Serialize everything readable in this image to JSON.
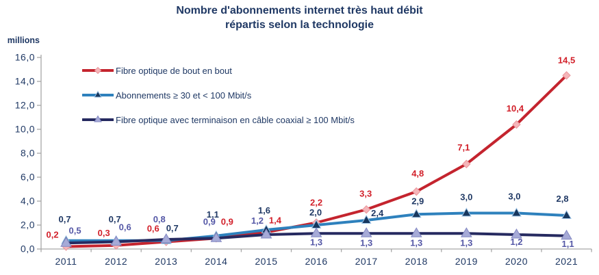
{
  "header": {
    "title_line1": "Nombre d'abonnements internet très haut débit",
    "title_line2": "répartis selon la technologie",
    "y_unit_label": "millions"
  },
  "colors": {
    "title_text": "#1F3864",
    "axis_text": "#1F3864",
    "axis_line": "#A6A6A6",
    "background": "#FFFFFF"
  },
  "chart_data": {
    "type": "line",
    "title": "Nombre d'abonnements internet très haut débit répartis selon la technologie",
    "y_unit": "millions",
    "xlabel": "",
    "ylabel": "millions",
    "categories": [
      "2011",
      "2012",
      "2013",
      "2014",
      "2015",
      "2016",
      "2017",
      "2018",
      "2019",
      "2020",
      "2021"
    ],
    "ylim": [
      0,
      16
    ],
    "ytick_step": 2,
    "ytick_labels": [
      "0,0",
      "2,0",
      "4,0",
      "6,0",
      "8,0",
      "10,0",
      "12,0",
      "14,0",
      "16,0"
    ],
    "grid": false,
    "legend_position": "inside-top-left",
    "series": [
      {
        "name": "Fibre optique de bout en bout",
        "marker": "diamond",
        "line_color": "#C4242E",
        "marker_fill": "#F5B5B9",
        "marker_stroke": "#E9969C",
        "label_color": "#D2202A",
        "values": [
          0.2,
          0.3,
          0.6,
          0.9,
          1.4,
          2.2,
          3.3,
          4.8,
          7.1,
          10.4,
          14.5
        ],
        "labels": [
          "0,2",
          "0,3",
          "0,6",
          "0,9",
          "1,4",
          "2,2",
          "3,3",
          "4,8",
          "7,1",
          "10,4",
          "14,5"
        ],
        "label_offsets": [
          [
            -20,
            -13
          ],
          [
            -18,
            -14
          ],
          [
            -19,
            -15
          ],
          [
            16,
            -20
          ],
          [
            13,
            -13
          ],
          [
            0,
            -25
          ],
          [
            -1,
            -19
          ],
          [
            2,
            -22
          ],
          [
            -4,
            -20
          ],
          [
            -2,
            -19
          ],
          [
            0,
            -18
          ]
        ]
      },
      {
        "name": "Abonnements ≥ 30 et < 100 Mbit/s",
        "marker": "triangle",
        "line_color": "#2E81BD",
        "marker_fill": "#17375E",
        "marker_stroke": "#9DC3E6",
        "label_color": "#1F3864",
        "values": [
          0.7,
          0.7,
          0.7,
          1.1,
          1.6,
          2.0,
          2.4,
          2.9,
          3.0,
          3.0,
          2.8
        ],
        "labels": [
          "0,7",
          "0,7",
          "0,7",
          "1,1",
          "1,6",
          "2,0",
          "2,4",
          "2,9",
          "3,0",
          "3,0",
          "2,8"
        ],
        "label_offsets": [
          [
            -2,
            -27
          ],
          [
            -2,
            -27
          ],
          [
            9,
            -14
          ],
          [
            -5,
            -27
          ],
          [
            -3,
            -24
          ],
          [
            -1,
            -14
          ],
          [
            16,
            -6
          ],
          [
            2,
            -15
          ],
          [
            0,
            -19
          ],
          [
            -3,
            -20
          ],
          [
            -6,
            -20
          ]
        ]
      },
      {
        "name": "Fibre optique avec terminaison en câble coaxial ≥ 100 Mbit/s",
        "marker": "triangle",
        "line_color": "#262A60",
        "marker_fill": "#A6AAD7",
        "marker_stroke": "#8287C2",
        "label_color": "#5457A6",
        "values": [
          0.5,
          0.6,
          0.8,
          0.9,
          1.2,
          1.3,
          1.3,
          1.3,
          1.3,
          1.2,
          1.1
        ],
        "labels": [
          "0,5",
          "0,6",
          "0,8",
          "0,9",
          "1,2",
          "1,3",
          "1,3",
          "1,3",
          "1,3",
          "1,2",
          "1,1"
        ],
        "label_offsets": [
          [
            13,
            -14
          ],
          [
            13,
            -17
          ],
          [
            -10,
            -25
          ],
          [
            -10,
            -20
          ],
          [
            -13,
            -16
          ],
          [
            0,
            17
          ],
          [
            0,
            18
          ],
          [
            0,
            18
          ],
          [
            0,
            18
          ],
          [
            0,
            15
          ],
          [
            2,
            16
          ]
        ]
      }
    ]
  }
}
